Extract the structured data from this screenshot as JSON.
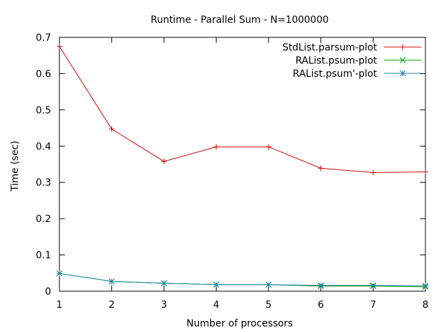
{
  "chart_data": {
    "type": "line",
    "title": "Runtime - Parallel Sum - N=1000000",
    "xlabel": "Number of processors",
    "ylabel": "Time (sec)",
    "xlim": [
      1,
      8
    ],
    "ylim": [
      0,
      0.7
    ],
    "x": [
      1,
      2,
      3,
      4,
      5,
      6,
      7,
      8
    ],
    "xticks": [
      "1",
      "2",
      "3",
      "4",
      "5",
      "6",
      "7",
      "8"
    ],
    "yticks": [
      "0",
      "0.1",
      "0.2",
      "0.3",
      "0.4",
      "0.5",
      "0.6",
      "0.7"
    ],
    "grid": false,
    "legend_position": "top-right",
    "series": [
      {
        "name": "StdList.parsum-plot",
        "color": "#cc0000",
        "marker": "plus",
        "values": [
          0.675,
          0.447,
          0.358,
          0.398,
          0.398,
          0.339,
          0.327,
          0.329
        ]
      },
      {
        "name": "RAList.psum-plot",
        "color": "#009900",
        "marker": "cross",
        "values": [
          0.049,
          0.027,
          0.022,
          0.018,
          0.018,
          0.014,
          0.014,
          0.012
        ]
      },
      {
        "name": "RAList.psum'-plot",
        "color": "#1e7fa6",
        "marker": "star",
        "values": [
          0.049,
          0.027,
          0.022,
          0.018,
          0.018,
          0.016,
          0.016,
          0.015
        ]
      }
    ]
  }
}
